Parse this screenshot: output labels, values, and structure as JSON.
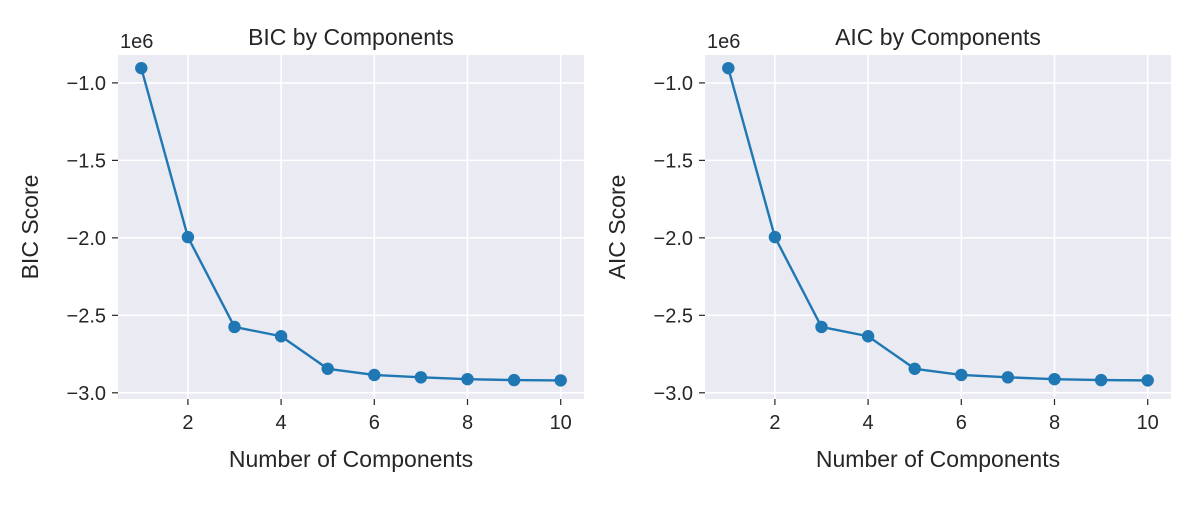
{
  "figure": {
    "background": "#ffffff",
    "plot_background": "#eaeaf2",
    "grid_color": "#ffffff",
    "series_color": "#1f77b4"
  },
  "chart_data": [
    {
      "type": "line",
      "title": "BIC by Components",
      "xlabel": "Number of Components",
      "ylabel": "BIC Score",
      "y_offset_label": "1e6",
      "x": [
        1,
        2,
        3,
        4,
        5,
        6,
        7,
        8,
        9,
        10
      ],
      "series": [
        {
          "values": [
            -905000,
            -1995000,
            -2575000,
            -2635000,
            -2845000,
            -2885000,
            -2900000,
            -2912000,
            -2918000,
            -2920000
          ],
          "marker": "circle"
        }
      ],
      "xlim": [
        0.5,
        10.5
      ],
      "ylim": [
        -3.04,
        -0.82
      ],
      "xticks": [
        2,
        4,
        6,
        8,
        10
      ],
      "xtick_labels": [
        "2",
        "4",
        "6",
        "8",
        "10"
      ],
      "yticks": [
        -1.0,
        -1.5,
        -2.0,
        -2.5,
        -3.0
      ],
      "ytick_labels": [
        "−1.0",
        "−1.5",
        "−2.0",
        "−2.5",
        "−3.0"
      ],
      "grid": true,
      "legend": "none"
    },
    {
      "type": "line",
      "title": "AIC by Components",
      "xlabel": "Number of Components",
      "ylabel": "AIC Score",
      "y_offset_label": "1e6",
      "x": [
        1,
        2,
        3,
        4,
        5,
        6,
        7,
        8,
        9,
        10
      ],
      "series": [
        {
          "values": [
            -905000,
            -1995000,
            -2575000,
            -2635000,
            -2845000,
            -2885000,
            -2900000,
            -2912000,
            -2918000,
            -2920000
          ],
          "marker": "circle"
        }
      ],
      "xlim": [
        0.5,
        10.5
      ],
      "ylim": [
        -3.04,
        -0.82
      ],
      "xticks": [
        2,
        4,
        6,
        8,
        10
      ],
      "xtick_labels": [
        "2",
        "4",
        "6",
        "8",
        "10"
      ],
      "yticks": [
        -1.0,
        -1.5,
        -2.0,
        -2.5,
        -3.0
      ],
      "ytick_labels": [
        "−1.0",
        "−1.5",
        "−2.0",
        "−2.5",
        "−3.0"
      ],
      "grid": true,
      "legend": "none"
    }
  ]
}
